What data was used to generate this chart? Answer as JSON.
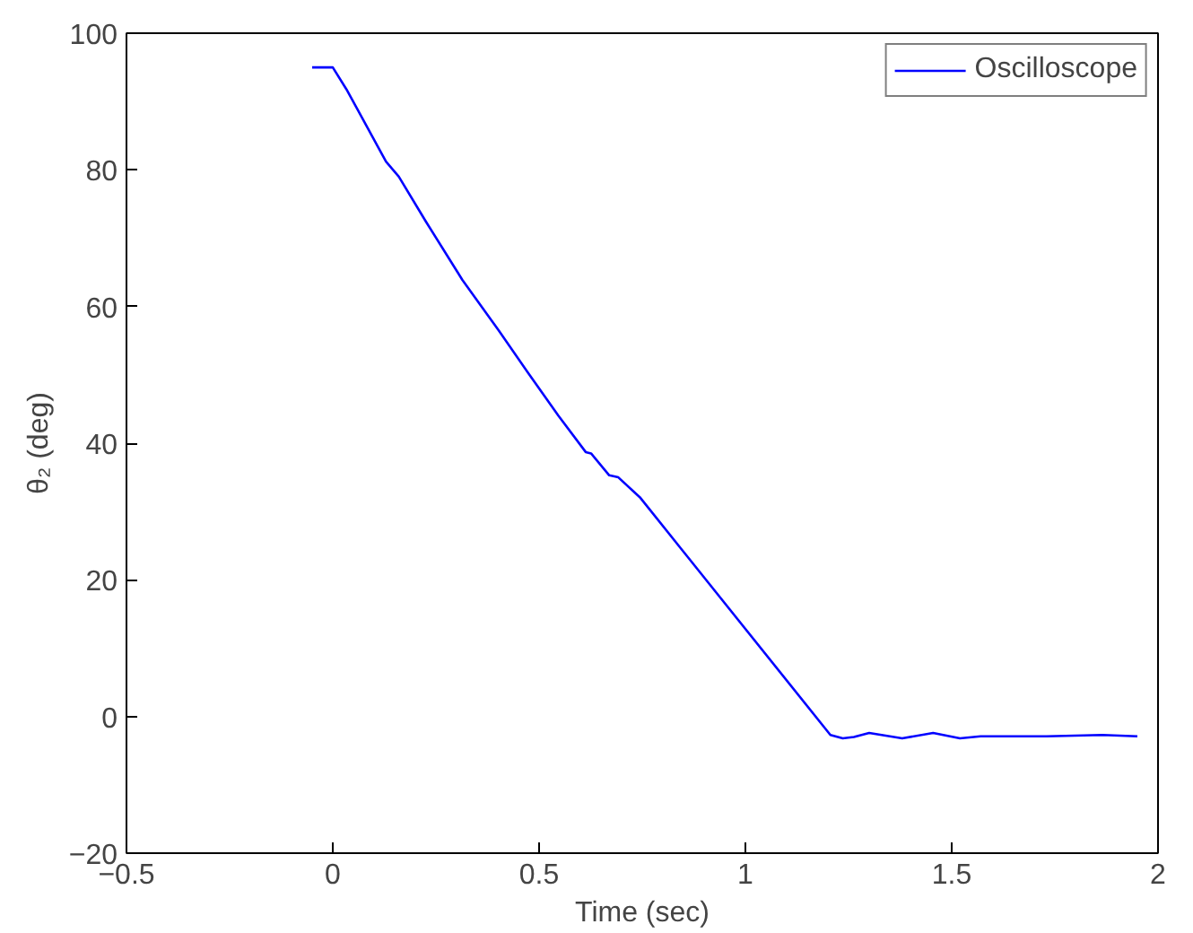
{
  "chart_data": {
    "type": "line",
    "xlabel": "Time (sec)",
    "ylabel": "θ₂ (deg)",
    "xlim": [
      -0.5,
      2
    ],
    "ylim": [
      -20,
      100
    ],
    "xticks": [
      {
        "value": -0.5,
        "label": "−0.5"
      },
      0,
      0.5,
      1,
      1.5,
      2
    ],
    "yticks": [
      {
        "value": -20,
        "label": "−20"
      },
      0,
      20,
      40,
      60,
      80,
      100
    ],
    "grid": false,
    "legend": "top right",
    "series": [
      {
        "name": "Oscilloscope",
        "color": "#0000ff",
        "x": [
          -0.05,
          0,
          0.033,
          0.072,
          0.129,
          0.16,
          0.226,
          0.314,
          0.402,
          0.472,
          0.547,
          0.613,
          0.626,
          0.67,
          0.692,
          0.744,
          1.206,
          1.236,
          1.263,
          1.3,
          1.38,
          1.455,
          1.52,
          1.57,
          1.73,
          1.865,
          1.95
        ],
        "values": [
          95,
          95,
          91.8,
          87.5,
          81.2,
          79.0,
          72.4,
          63.9,
          56.5,
          50.4,
          44.0,
          38.7,
          38.5,
          35.3,
          35.0,
          32.1,
          -2.7,
          -3.2,
          -3.0,
          -2.4,
          -3.2,
          -2.4,
          -3.2,
          -2.9,
          -2.9,
          -2.7,
          -2.9
        ]
      }
    ]
  }
}
